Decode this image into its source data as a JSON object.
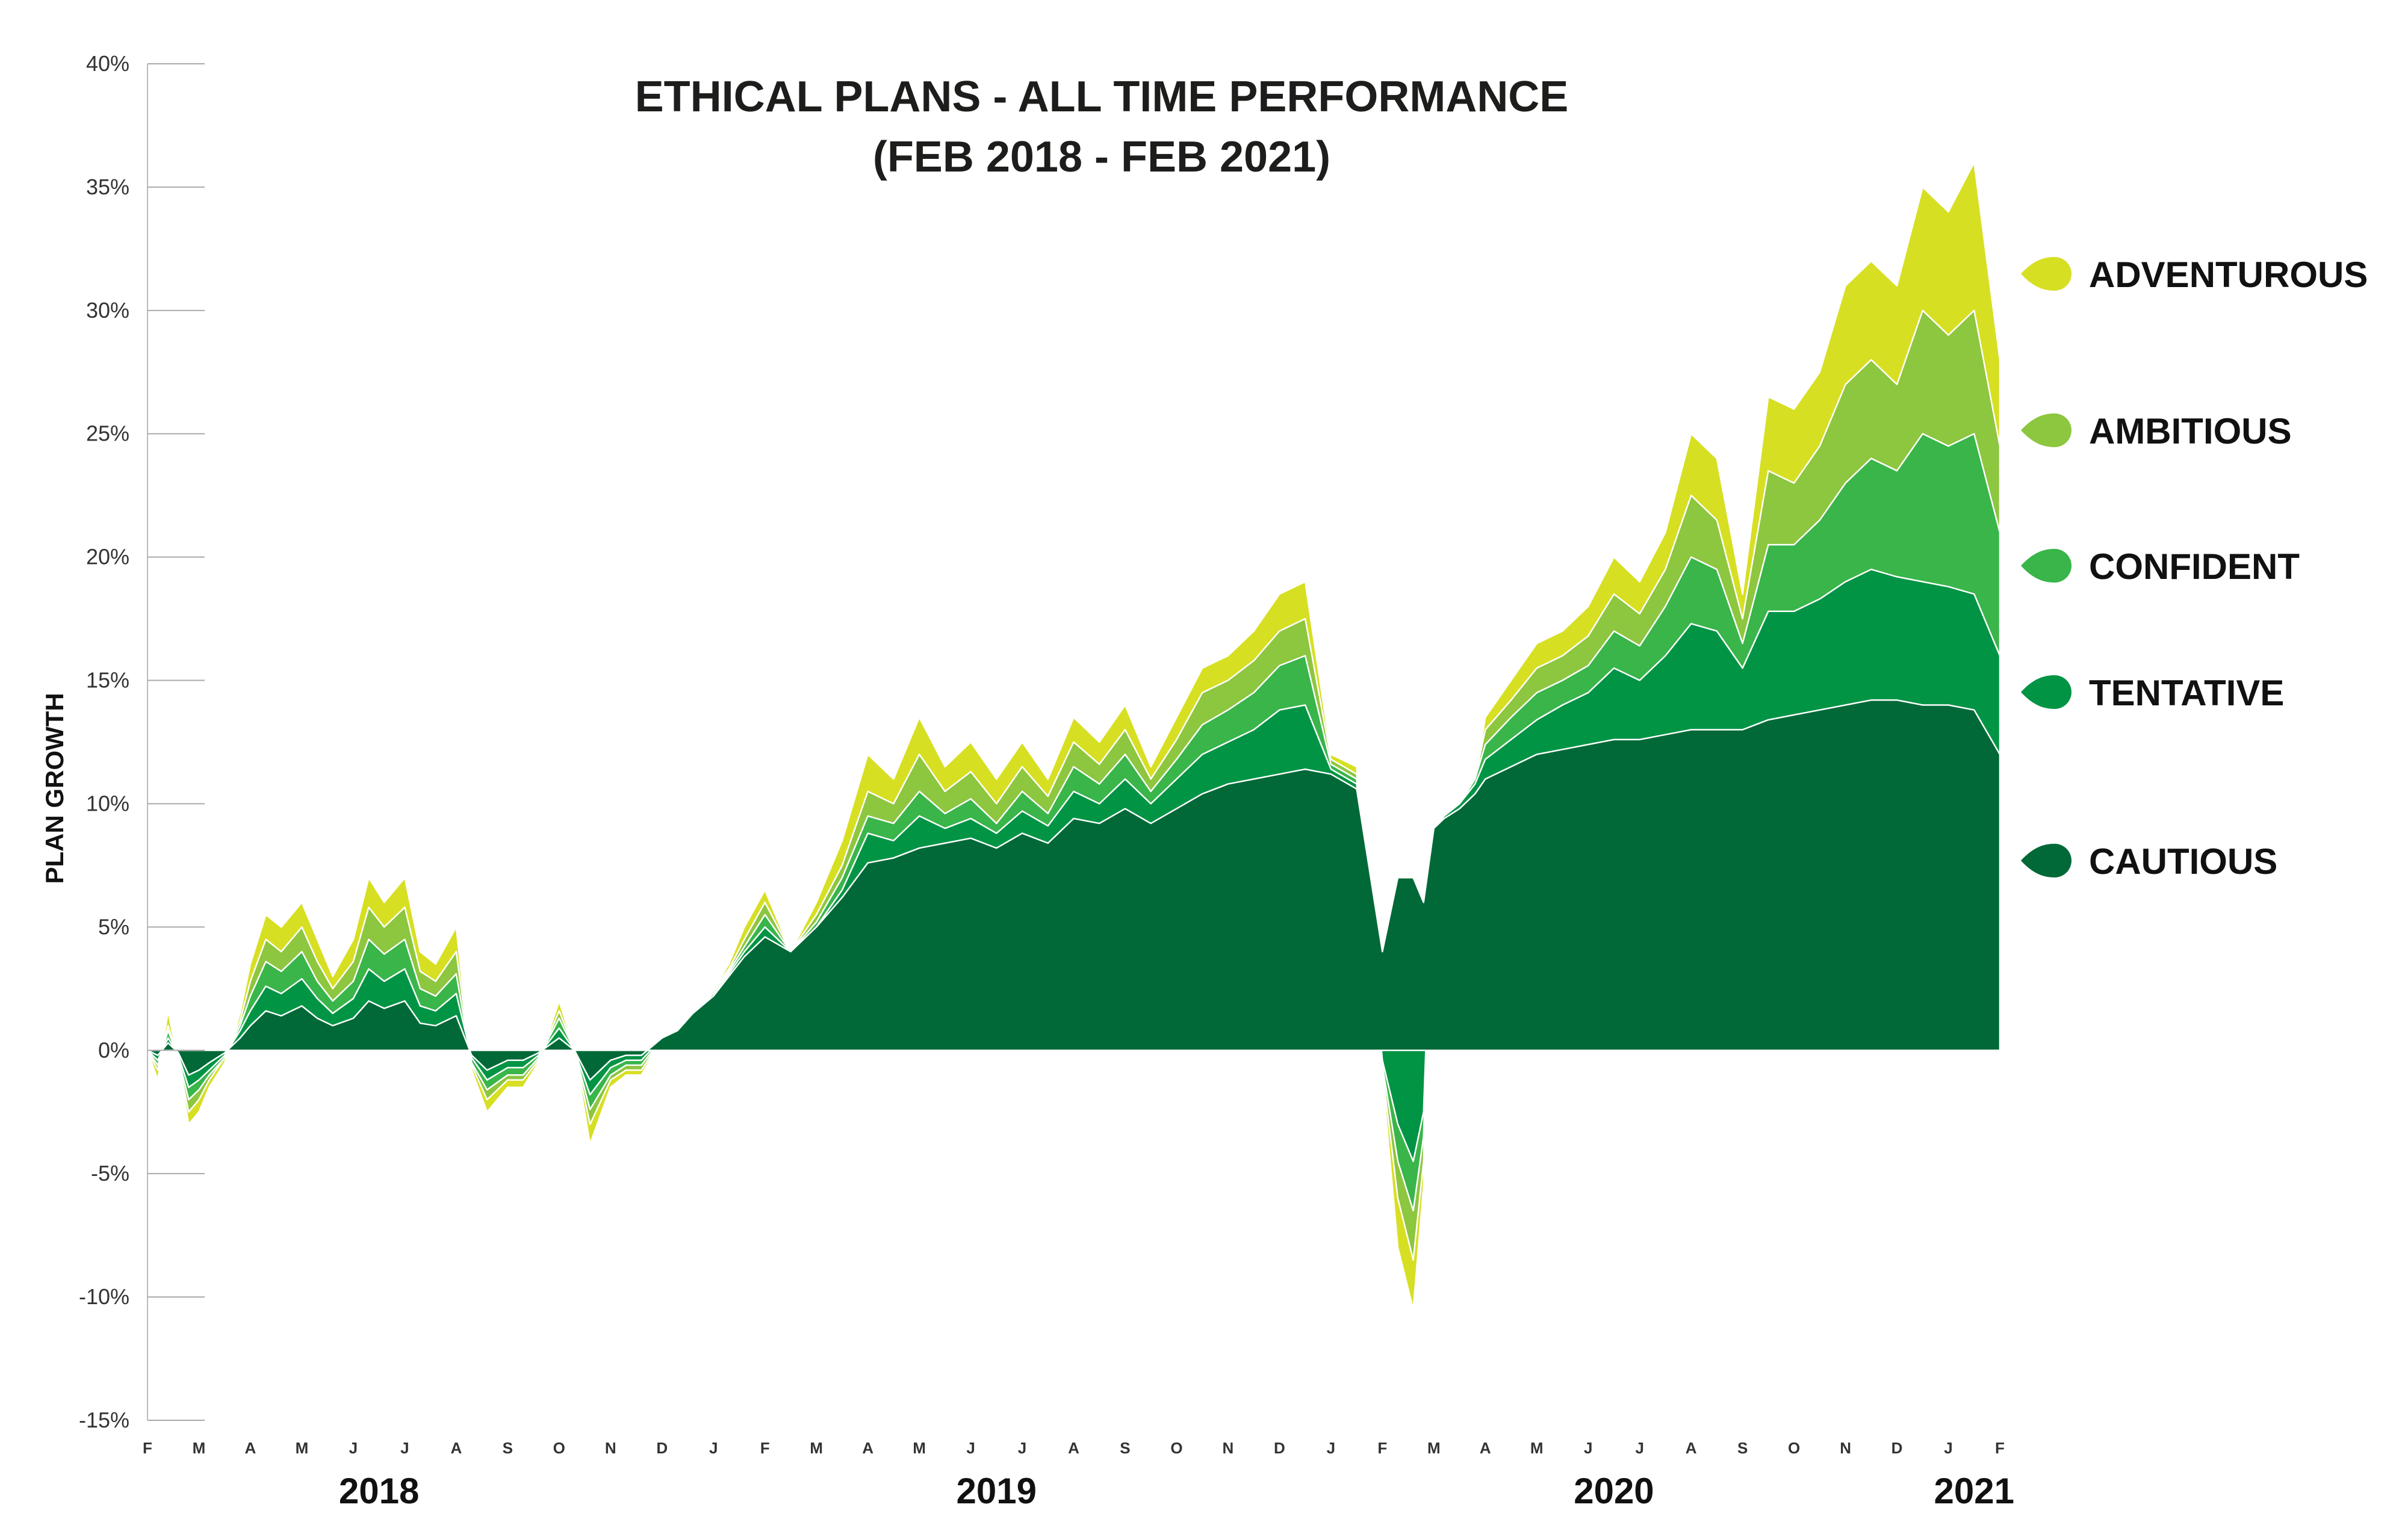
{
  "chart_data": {
    "type": "area",
    "stacked": false,
    "title": [
      "ETHICAL PLANS - ALL TIME PERFORMANCE",
      "(FEB 2018 - FEB 2021)"
    ],
    "ylabel": "PLAN GROWTH",
    "ylim": [
      -15,
      40
    ],
    "yticks": [
      40,
      35,
      30,
      25,
      20,
      15,
      10,
      5,
      0,
      -5,
      -10,
      -15
    ],
    "ytick_labels": [
      "40%",
      "35%",
      "30%",
      "25%",
      "20%",
      "15%",
      "10%",
      "5%",
      "0%",
      "-5%",
      "-10%",
      "-15%"
    ],
    "x_month_labels": [
      "F",
      "M",
      "A",
      "M",
      "J",
      "J",
      "A",
      "S",
      "O",
      "N",
      "D",
      "J",
      "F",
      "M",
      "A",
      "M",
      "J",
      "J",
      "A",
      "S",
      "O",
      "N",
      "D",
      "J",
      "F",
      "M",
      "A",
      "M",
      "J",
      "J",
      "A",
      "S",
      "O",
      "N",
      "D",
      "J",
      "F"
    ],
    "x_year_labels": [
      {
        "label": "2018",
        "month_index": 4.5
      },
      {
        "label": "2019",
        "month_index": 16.5
      },
      {
        "label": "2020",
        "month_index": 28.5
      },
      {
        "label": "2021",
        "month_index": 35.5
      }
    ],
    "x_month_index": [
      0,
      0.2,
      0.4,
      0.6,
      0.8,
      1,
      1.2,
      1.5,
      1.8,
      2,
      2.3,
      2.6,
      3,
      3.3,
      3.6,
      4,
      4.3,
      4.6,
      5,
      5.3,
      5.6,
      6,
      6.3,
      6.6,
      7,
      7.3,
      7.6,
      8,
      8.3,
      8.6,
      9,
      9.3,
      9.6,
      10,
      10.3,
      10.6,
      11,
      11.3,
      11.6,
      12,
      12.5,
      13,
      13.5,
      14,
      14.5,
      15,
      15.5,
      16,
      16.5,
      17,
      17.5,
      18,
      18.5,
      19,
      19.5,
      20,
      20.5,
      21,
      21.5,
      22,
      22.5,
      23,
      23.5,
      24,
      24.3,
      24.6,
      24.8,
      25,
      25.2,
      25.5,
      25.8,
      26,
      26.5,
      27,
      27.5,
      28,
      28.5,
      29,
      29.5,
      30,
      30.5,
      31,
      31.5,
      32,
      32.5,
      33,
      33.5,
      34,
      34.5,
      35,
      35.5,
      36
    ],
    "series": [
      {
        "name": "ADVENTUROUS",
        "color": "#d7df23",
        "values": [
          0,
          -1.2,
          1.6,
          -0.5,
          -3.0,
          -2.5,
          -1.5,
          -0.5,
          1.5,
          3.5,
          5.5,
          5.0,
          6.0,
          4.5,
          3.0,
          4.5,
          7.0,
          6.0,
          7.0,
          4.0,
          3.5,
          5.0,
          -0.8,
          -2.5,
          -1.5,
          -1.5,
          -0.5,
          2.0,
          0.0,
          -3.8,
          -1.5,
          -1.0,
          -1.0,
          0.5,
          0.8,
          1.5,
          2.5,
          3.5,
          5.0,
          6.5,
          4.0,
          6.0,
          8.5,
          12.0,
          11.0,
          13.5,
          11.5,
          12.5,
          11.0,
          12.5,
          11.0,
          13.5,
          12.5,
          14.0,
          11.5,
          13.5,
          15.5,
          16.0,
          17.0,
          18.5,
          19.0,
          12.0,
          11.5,
          -1.0,
          -8.0,
          -10.5,
          -5.5,
          9.0,
          9.5,
          10.0,
          11.0,
          13.5,
          15.0,
          16.5,
          17.0,
          18.0,
          20.0,
          19.0,
          21.0,
          25.0,
          24.0,
          18.5,
          26.5,
          26.0,
          27.5,
          31.0,
          32.0,
          31.0,
          35.0,
          34.0,
          36.0,
          28.0
        ]
      },
      {
        "name": "AMBITIOUS",
        "color": "#8dc63f",
        "values": [
          0,
          -0.8,
          1.0,
          -0.4,
          -2.5,
          -2.0,
          -1.2,
          -0.3,
          1.2,
          2.8,
          4.5,
          4.0,
          5.0,
          3.6,
          2.5,
          3.6,
          5.8,
          5.0,
          5.8,
          3.2,
          2.8,
          4.0,
          -0.6,
          -2.0,
          -1.2,
          -1.2,
          -0.4,
          1.6,
          0.0,
          -3.0,
          -1.2,
          -0.8,
          -0.8,
          0.5,
          0.8,
          1.5,
          2.5,
          3.3,
          4.5,
          6.0,
          4.0,
          5.5,
          7.5,
          10.5,
          10.0,
          12.0,
          10.5,
          11.3,
          10.0,
          11.5,
          10.3,
          12.5,
          11.6,
          13.0,
          11.0,
          12.6,
          14.5,
          15.0,
          15.8,
          17.0,
          17.5,
          11.8,
          11.2,
          -0.8,
          -6.0,
          -8.5,
          -4.5,
          9.0,
          9.5,
          10.0,
          11.0,
          13.0,
          14.2,
          15.5,
          16.0,
          16.8,
          18.5,
          17.7,
          19.5,
          22.5,
          21.5,
          17.5,
          23.5,
          23.0,
          24.5,
          27.0,
          28.0,
          27.0,
          30.0,
          29.0,
          30.0,
          24.5
        ]
      },
      {
        "name": "CONFIDENT",
        "color": "#39b54a",
        "values": [
          0,
          -0.6,
          0.8,
          -0.3,
          -2.0,
          -1.6,
          -1.0,
          -0.3,
          1.0,
          2.2,
          3.6,
          3.2,
          4.0,
          2.8,
          2.0,
          2.8,
          4.5,
          3.9,
          4.5,
          2.5,
          2.2,
          3.1,
          -0.5,
          -1.6,
          -1.0,
          -1.0,
          -0.3,
          1.3,
          0.0,
          -2.4,
          -1.0,
          -0.6,
          -0.6,
          0.5,
          0.8,
          1.5,
          2.4,
          3.2,
          4.2,
          5.5,
          4.0,
          5.2,
          7.0,
          9.5,
          9.2,
          10.5,
          9.6,
          10.2,
          9.2,
          10.5,
          9.6,
          11.5,
          10.8,
          12.0,
          10.5,
          11.8,
          13.2,
          13.8,
          14.5,
          15.6,
          16.0,
          11.6,
          11.0,
          -0.6,
          -4.5,
          -6.5,
          -3.5,
          9.0,
          9.5,
          10.0,
          11.0,
          12.4,
          13.5,
          14.5,
          15.0,
          15.6,
          17.0,
          16.4,
          18.0,
          20.0,
          19.5,
          16.5,
          20.5,
          20.5,
          21.5,
          23.0,
          24.0,
          23.5,
          25.0,
          24.5,
          25.0,
          21.0
        ]
      },
      {
        "name": "TENTATIVE",
        "color": "#009444",
        "values": [
          0,
          -0.4,
          0.5,
          -0.2,
          -1.5,
          -1.2,
          -0.8,
          -0.2,
          0.8,
          1.6,
          2.6,
          2.3,
          2.9,
          2.1,
          1.5,
          2.1,
          3.3,
          2.8,
          3.3,
          1.8,
          1.6,
          2.3,
          -0.3,
          -1.2,
          -0.7,
          -0.7,
          -0.2,
          0.9,
          0.0,
          -1.8,
          -0.7,
          -0.4,
          -0.4,
          0.5,
          0.8,
          1.5,
          2.3,
          3.1,
          4.0,
          5.0,
          4.0,
          5.0,
          6.5,
          8.8,
          8.5,
          9.5,
          9.0,
          9.4,
          8.8,
          9.7,
          9.1,
          10.5,
          10.0,
          11.0,
          10.0,
          11.0,
          12.0,
          12.5,
          13.0,
          13.8,
          14.0,
          11.4,
          10.8,
          -0.4,
          -3.0,
          -4.5,
          -2.5,
          9.0,
          9.5,
          10.0,
          10.8,
          11.8,
          12.6,
          13.4,
          14.0,
          14.5,
          15.5,
          15.0,
          16.0,
          17.3,
          17.0,
          15.5,
          17.8,
          17.8,
          18.3,
          19.0,
          19.5,
          19.2,
          19.0,
          18.8,
          18.5,
          16.0
        ]
      },
      {
        "name": "CAUTIOUS",
        "color": "#006937",
        "values": [
          0,
          -0.2,
          0.3,
          -0.1,
          -1.0,
          -0.8,
          -0.5,
          -0.1,
          0.5,
          1.0,
          1.6,
          1.4,
          1.8,
          1.3,
          1.0,
          1.3,
          2.0,
          1.7,
          2.0,
          1.1,
          1.0,
          1.4,
          -0.2,
          -0.8,
          -0.4,
          -0.4,
          -0.1,
          0.5,
          0.0,
          -1.2,
          -0.4,
          -0.2,
          -0.2,
          0.5,
          0.8,
          1.5,
          2.2,
          3.0,
          3.8,
          4.6,
          4.0,
          5.0,
          6.2,
          7.6,
          7.8,
          8.2,
          8.4,
          8.6,
          8.2,
          8.8,
          8.4,
          9.4,
          9.2,
          9.8,
          9.2,
          9.8,
          10.4,
          10.8,
          11.0,
          11.2,
          11.4,
          11.2,
          10.6,
          4.0,
          7.0,
          7.0,
          6.0,
          9.0,
          9.4,
          9.8,
          10.4,
          11.0,
          11.5,
          12.0,
          12.2,
          12.4,
          12.6,
          12.6,
          12.8,
          13.0,
          13.0,
          13.0,
          13.4,
          13.6,
          13.8,
          14.0,
          14.2,
          14.2,
          14.0,
          14.0,
          13.8,
          12.0
        ]
      }
    ]
  }
}
